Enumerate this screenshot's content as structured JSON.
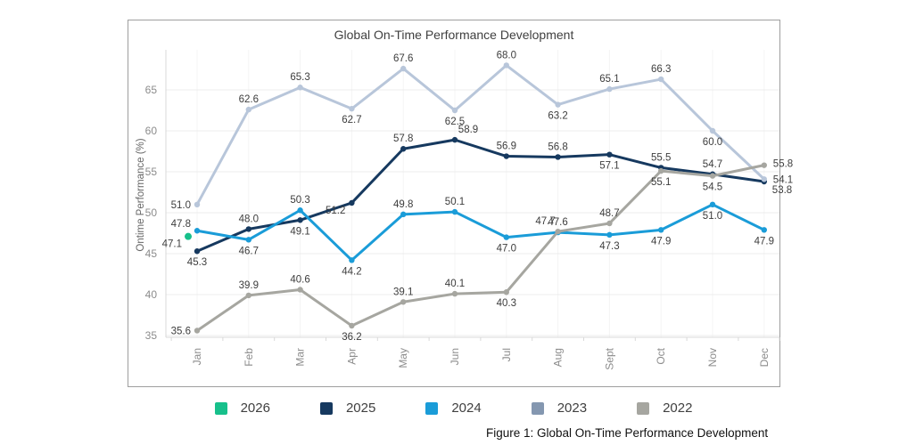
{
  "figure_caption": "Figure 1: Global On-Time Performance Development",
  "chart_data": {
    "type": "line",
    "title": "Global On-Time Performance Development",
    "ylabel": "Ontime Performance (%)",
    "xlabel": "",
    "categories": [
      "Jan",
      "Feb",
      "Mar",
      "Apr",
      "May",
      "Jun",
      "Jul",
      "Aug",
      "Sept",
      "Oct",
      "Nov",
      "Dec"
    ],
    "y_ticks": [
      35,
      40,
      45,
      50,
      55,
      60,
      65
    ],
    "ylim": [
      33.5,
      70
    ],
    "grid": true,
    "legend_position": "bottom",
    "marker": "circle",
    "series": [
      {
        "name": "2026",
        "color": "#17c08b",
        "values": [
          47.1,
          null,
          null,
          null,
          null,
          null,
          null,
          null,
          null,
          null,
          null,
          null
        ]
      },
      {
        "name": "2025",
        "color": "#16395f",
        "values": [
          45.3,
          48.0,
          49.1,
          51.2,
          57.8,
          58.9,
          56.9,
          56.8,
          57.1,
          55.5,
          54.7,
          53.8
        ]
      },
      {
        "name": "2024",
        "color": "#1a9cd8",
        "values": [
          47.8,
          46.7,
          50.3,
          44.2,
          49.8,
          50.1,
          47.0,
          47.6,
          47.3,
          47.9,
          51.0,
          47.9
        ]
      },
      {
        "name": "2023",
        "color": "#8497b0",
        "line_color": "#b8c6da",
        "values": [
          51.0,
          62.6,
          65.3,
          62.7,
          67.6,
          62.5,
          68.0,
          63.2,
          65.1,
          66.3,
          60.0,
          54.1
        ]
      },
      {
        "name": "2022",
        "color": "#a6a6a0",
        "values": [
          35.6,
          39.9,
          40.6,
          36.2,
          39.1,
          40.1,
          40.3,
          47.7,
          48.7,
          55.1,
          54.5,
          55.8
        ]
      }
    ]
  }
}
